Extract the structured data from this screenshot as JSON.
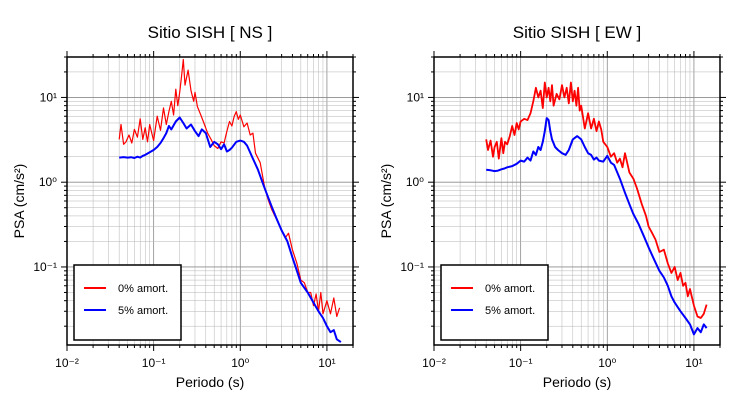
{
  "chart_data": [
    {
      "type": "line",
      "title": "Sitio SISH [ NS ]",
      "xlabel": "Periodo (s)",
      "ylabel": "PSA (cm/s²)",
      "xscale": "log",
      "yscale": "log",
      "xlim": [
        0.01,
        20
      ],
      "ylim": [
        0.012,
        30
      ],
      "grid": true,
      "legend_position": "bottom-left",
      "x_tick_labels": [
        "10⁻²",
        "10⁻¹",
        "10⁰",
        "10¹"
      ],
      "y_tick_labels": [
        "10⁻¹",
        "10⁰",
        "10¹"
      ],
      "series": [
        {
          "name": "0% amort.",
          "color": "#ff0000",
          "x": [
            0.04,
            0.042,
            0.045,
            0.048,
            0.052,
            0.056,
            0.06,
            0.065,
            0.07,
            0.075,
            0.08,
            0.085,
            0.09,
            0.1,
            0.11,
            0.12,
            0.13,
            0.14,
            0.15,
            0.16,
            0.17,
            0.18,
            0.19,
            0.2,
            0.21,
            0.22,
            0.23,
            0.25,
            0.27,
            0.29,
            0.3,
            0.32,
            0.35,
            0.38,
            0.42,
            0.46,
            0.5,
            0.55,
            0.6,
            0.65,
            0.7,
            0.75,
            0.8,
            0.85,
            0.9,
            0.95,
            1.0,
            1.1,
            1.2,
            1.3,
            1.4,
            1.5,
            1.7,
            1.9,
            2.1,
            2.3,
            2.5,
            2.8,
            3.0,
            3.3,
            3.6,
            4.0,
            4.5,
            5.0,
            5.5,
            6.0,
            6.5,
            7.0,
            7.5,
            8.0,
            8.5,
            9.0,
            10.0,
            11.0,
            12.0,
            13.0,
            14.0
          ],
          "y": [
            3.2,
            4.8,
            2.8,
            3.0,
            3.6,
            2.9,
            4.2,
            3.4,
            5.6,
            3.2,
            4.4,
            3.0,
            4.8,
            3.1,
            6.0,
            4.1,
            7.5,
            4.8,
            6.8,
            9.0,
            6.2,
            12.5,
            8.0,
            11.5,
            18.0,
            28.0,
            14.0,
            21.0,
            12.0,
            9.0,
            11.5,
            7.8,
            6.2,
            5.0,
            3.8,
            3.2,
            2.7,
            2.5,
            3.0,
            2.9,
            4.0,
            5.2,
            4.6,
            6.0,
            6.8,
            5.5,
            6.2,
            4.5,
            5.0,
            3.6,
            3.8,
            2.2,
            1.7,
            0.9,
            0.62,
            0.48,
            0.4,
            0.32,
            0.27,
            0.22,
            0.25,
            0.16,
            0.11,
            0.07,
            0.065,
            0.05,
            0.05,
            0.035,
            0.048,
            0.03,
            0.05,
            0.028,
            0.04,
            0.028,
            0.043,
            0.026,
            0.033
          ]
        },
        {
          "name": "5% amort.",
          "color": "#0000ff",
          "x": [
            0.04,
            0.045,
            0.05,
            0.055,
            0.06,
            0.065,
            0.07,
            0.075,
            0.08,
            0.09,
            0.1,
            0.11,
            0.12,
            0.13,
            0.14,
            0.15,
            0.16,
            0.18,
            0.2,
            0.22,
            0.24,
            0.27,
            0.3,
            0.33,
            0.36,
            0.4,
            0.45,
            0.5,
            0.55,
            0.6,
            0.65,
            0.7,
            0.75,
            0.8,
            0.9,
            1.0,
            1.1,
            1.2,
            1.4,
            1.6,
            1.8,
            2.0,
            2.3,
            2.6,
            3.0,
            3.5,
            4.0,
            4.5,
            5.0,
            6.0,
            7.0,
            8.0,
            9.0,
            10.0,
            11.0,
            12.0,
            13.0,
            14.5
          ],
          "y": [
            1.95,
            1.98,
            1.95,
            1.97,
            1.93,
            2.0,
            1.95,
            2.05,
            2.1,
            2.25,
            2.4,
            2.6,
            2.9,
            3.3,
            3.8,
            4.6,
            4.2,
            5.2,
            5.8,
            5.0,
            4.3,
            4.8,
            4.0,
            3.5,
            4.2,
            3.8,
            2.6,
            3.0,
            2.8,
            2.45,
            2.8,
            2.3,
            2.4,
            2.55,
            3.0,
            3.1,
            3.0,
            2.7,
            1.9,
            1.4,
            1.0,
            0.75,
            0.52,
            0.38,
            0.27,
            0.2,
            0.13,
            0.09,
            0.065,
            0.05,
            0.038,
            0.03,
            0.025,
            0.02,
            0.017,
            0.018,
            0.014,
            0.013
          ]
        }
      ]
    },
    {
      "type": "line",
      "title": "Sitio SISH [ EW ]",
      "xlabel": "Periodo (s)",
      "ylabel": "PSA (cm/s²)",
      "xscale": "log",
      "yscale": "log",
      "xlim": [
        0.01,
        20
      ],
      "ylim": [
        0.012,
        30
      ],
      "grid": true,
      "legend_position": "bottom-left",
      "x_tick_labels": [
        "10⁻²",
        "10⁻¹",
        "10⁰",
        "10¹"
      ],
      "y_tick_labels": [
        "10⁻¹",
        "10⁰",
        "10¹"
      ],
      "series": [
        {
          "name": "0% amort.",
          "color": "#ff0000",
          "x": [
            0.04,
            0.042,
            0.045,
            0.048,
            0.05,
            0.053,
            0.056,
            0.06,
            0.063,
            0.066,
            0.07,
            0.075,
            0.08,
            0.085,
            0.09,
            0.095,
            0.1,
            0.11,
            0.12,
            0.13,
            0.14,
            0.15,
            0.16,
            0.17,
            0.18,
            0.19,
            0.2,
            0.21,
            0.22,
            0.23,
            0.24,
            0.26,
            0.28,
            0.3,
            0.32,
            0.34,
            0.36,
            0.38,
            0.4,
            0.42,
            0.44,
            0.46,
            0.48,
            0.5,
            0.55,
            0.6,
            0.65,
            0.7,
            0.75,
            0.8,
            0.85,
            0.9,
            1.0,
            1.1,
            1.2,
            1.3,
            1.4,
            1.5,
            1.6,
            1.8,
            2.0,
            2.2,
            2.5,
            2.8,
            3.0,
            3.3,
            3.6,
            4.0,
            4.5,
            5.0,
            5.5,
            6.0,
            6.5,
            7.0,
            7.5,
            8.0,
            8.5,
            9.0,
            10.0,
            11.0,
            12.0,
            13.0,
            14.0
          ],
          "y": [
            3.2,
            2.4,
            3.1,
            2.0,
            2.6,
            3.0,
            1.9,
            3.3,
            2.2,
            3.0,
            2.8,
            3.5,
            4.6,
            3.6,
            5.0,
            4.2,
            5.2,
            5.6,
            5.4,
            6.5,
            9.0,
            13.0,
            10.0,
            12.0,
            7.5,
            15.0,
            10.0,
            13.0,
            9.0,
            14.0,
            8.0,
            11.0,
            9.5,
            14.0,
            10.0,
            13.0,
            8.5,
            15.0,
            9.0,
            12.0,
            8.0,
            13.0,
            7.0,
            8.0,
            4.3,
            6.5,
            4.3,
            5.6,
            4.0,
            5.2,
            4.2,
            3.0,
            2.6,
            2.0,
            2.2,
            1.7,
            1.9,
            1.5,
            2.2,
            1.3,
            1.1,
            0.85,
            0.55,
            0.4,
            0.3,
            0.25,
            0.21,
            0.15,
            0.16,
            0.11,
            0.085,
            0.1,
            0.07,
            0.085,
            0.06,
            0.065,
            0.045,
            0.055,
            0.035,
            0.026,
            0.025,
            0.028,
            0.036
          ]
        },
        {
          "name": "5% amort.",
          "color": "#0000ff",
          "x": [
            0.04,
            0.045,
            0.05,
            0.055,
            0.06,
            0.065,
            0.07,
            0.08,
            0.09,
            0.1,
            0.11,
            0.12,
            0.13,
            0.14,
            0.15,
            0.16,
            0.17,
            0.18,
            0.19,
            0.2,
            0.21,
            0.22,
            0.23,
            0.25,
            0.27,
            0.3,
            0.33,
            0.36,
            0.4,
            0.45,
            0.5,
            0.55,
            0.6,
            0.65,
            0.7,
            0.75,
            0.8,
            0.9,
            1.0,
            1.1,
            1.2,
            1.4,
            1.6,
            1.8,
            2.0,
            2.3,
            2.6,
            3.0,
            3.5,
            4.0,
            4.5,
            5.0,
            5.5,
            6.0,
            7.0,
            8.0,
            9.0,
            10.0,
            11.0,
            12.0,
            13.0,
            14.0
          ],
          "y": [
            1.4,
            1.38,
            1.35,
            1.37,
            1.42,
            1.45,
            1.5,
            1.55,
            1.65,
            1.8,
            1.75,
            1.95,
            1.8,
            2.3,
            2.1,
            2.6,
            2.4,
            3.0,
            4.0,
            5.7,
            5.4,
            4.0,
            3.2,
            2.6,
            2.4,
            2.2,
            2.1,
            2.4,
            3.2,
            3.5,
            3.2,
            2.6,
            2.2,
            2.1,
            1.85,
            1.95,
            1.8,
            1.75,
            2.05,
            1.7,
            1.6,
            1.1,
            0.75,
            0.55,
            0.42,
            0.32,
            0.24,
            0.17,
            0.12,
            0.09,
            0.075,
            0.06,
            0.045,
            0.038,
            0.03,
            0.025,
            0.021,
            0.016,
            0.019,
            0.017,
            0.021,
            0.019
          ]
        }
      ]
    }
  ]
}
